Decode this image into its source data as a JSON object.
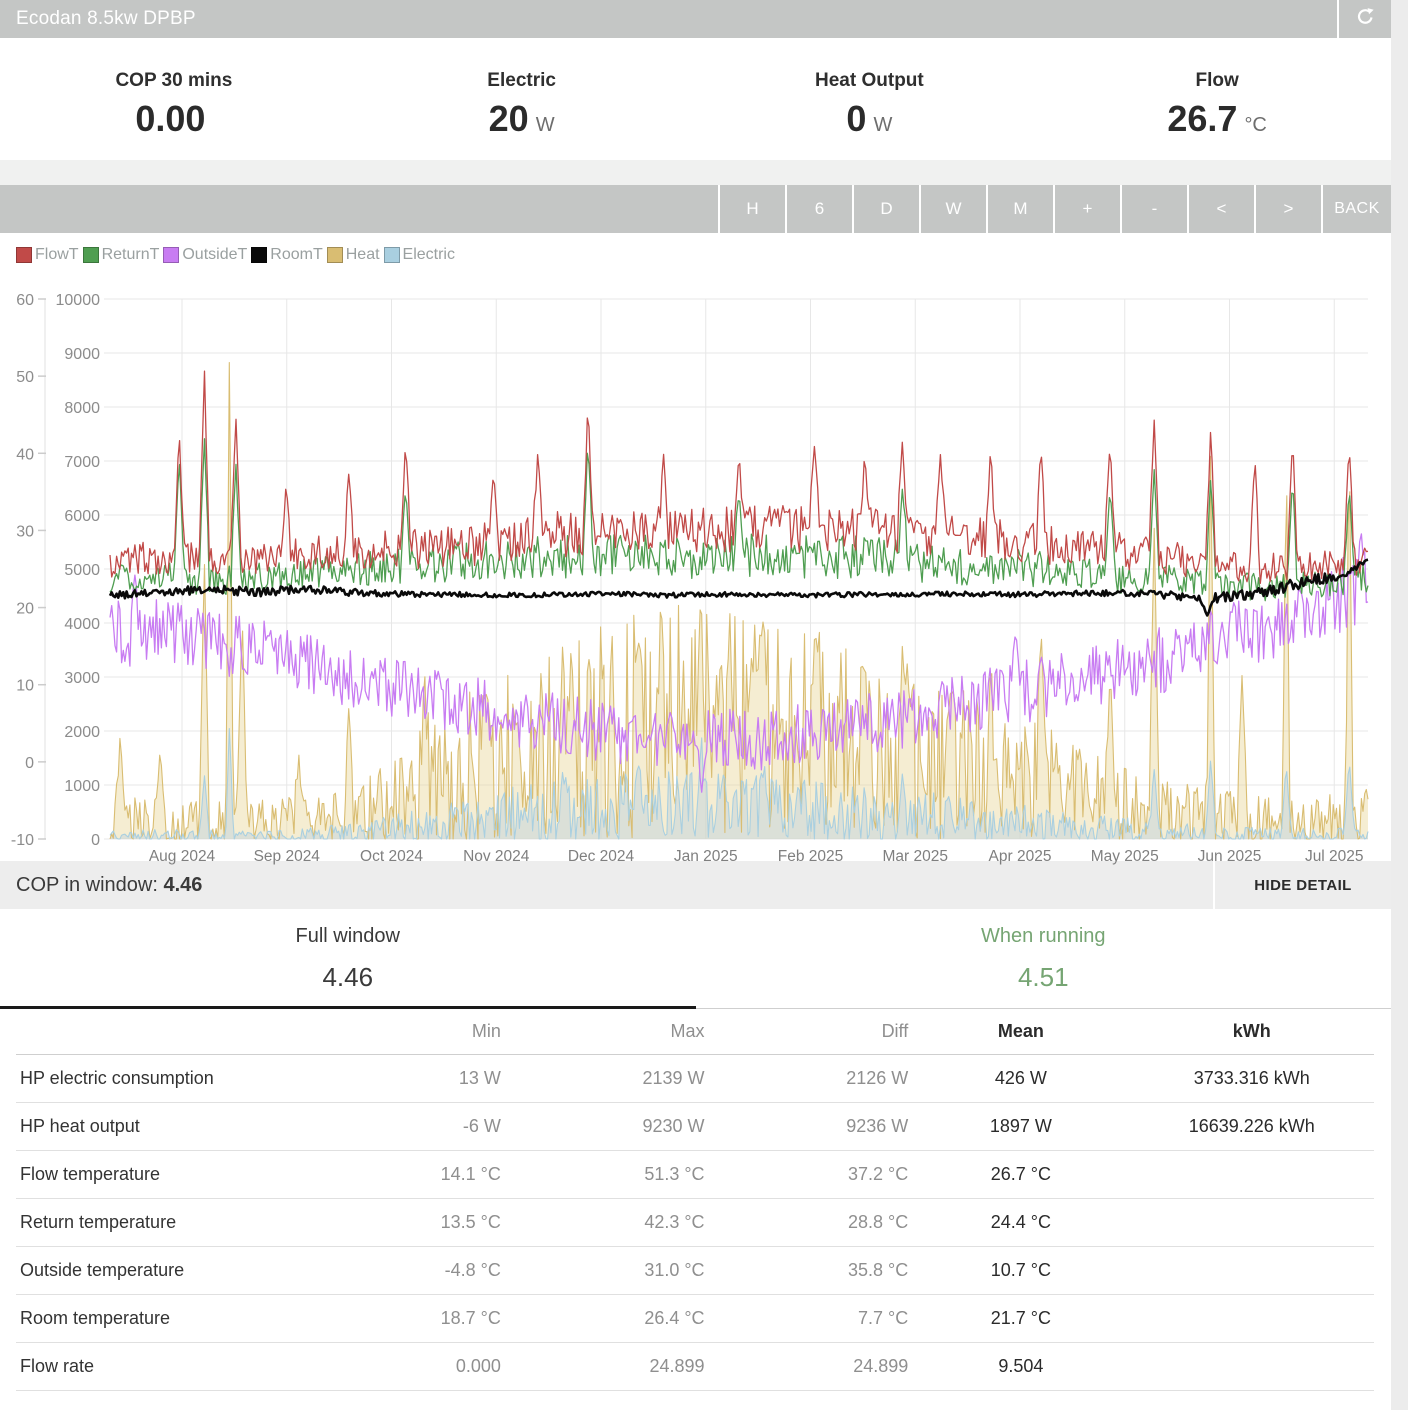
{
  "header": {
    "title": "Ecodan 8.5kw DPBP"
  },
  "stats": [
    {
      "label": "COP 30 mins",
      "value": "0.00",
      "unit": ""
    },
    {
      "label": "Electric",
      "value": "20",
      "unit": "W"
    },
    {
      "label": "Heat Output",
      "value": "0",
      "unit": "W"
    },
    {
      "label": "Flow",
      "value": "26.7",
      "unit": "°C"
    }
  ],
  "toolbar": {
    "buttons": [
      "H",
      "6",
      "D",
      "W",
      "M",
      "+",
      "-",
      "<",
      ">",
      "BACK"
    ]
  },
  "cop_bar": {
    "label": "COP in window: ",
    "value": "4.46",
    "detail_button": "HIDE DETAIL"
  },
  "tabs": [
    {
      "label": "Full window",
      "value": "4.46",
      "color": "#3a3a3a",
      "active": true
    },
    {
      "label": "When running",
      "value": "4.51",
      "color": "#76a573",
      "active": false
    }
  ],
  "table": {
    "headers": [
      "",
      "Min",
      "Max",
      "Diff",
      "Mean",
      "kWh"
    ],
    "rows": [
      [
        "HP electric consumption",
        "13 W",
        "2139 W",
        "2126 W",
        "426 W",
        "3733.316 kWh"
      ],
      [
        "HP heat output",
        "-6 W",
        "9230 W",
        "9236 W",
        "1897 W",
        "16639.226 kWh"
      ],
      [
        "Flow temperature",
        "14.1 °C",
        "51.3 °C",
        "37.2 °C",
        "26.7 °C",
        ""
      ],
      [
        "Return temperature",
        "13.5 °C",
        "42.3 °C",
        "28.8 °C",
        "24.4 °C",
        ""
      ],
      [
        "Outside temperature",
        "-4.8 °C",
        "31.0 °C",
        "35.8 °C",
        "10.7 °C",
        ""
      ],
      [
        "Room temperature",
        "18.7 °C",
        "26.4 °C",
        "7.7 °C",
        "21.7 °C",
        ""
      ],
      [
        "Flow rate",
        "0.000",
        "24.899",
        "24.899",
        "9.504",
        ""
      ]
    ]
  },
  "chart_data": {
    "type": "line",
    "title": "",
    "x_ticks": [
      "Aug 2024",
      "Sep 2024",
      "Oct 2024",
      "Nov 2024",
      "Dec 2024",
      "Jan 2025",
      "Feb 2025",
      "Mar 2025",
      "Apr 2025",
      "May 2025",
      "Jun 2025",
      "Jul 2025"
    ],
    "temp_axis": {
      "min": -10,
      "max": 60,
      "ticks": [
        60,
        50,
        40,
        30,
        20,
        10,
        0,
        -10
      ]
    },
    "watt_axis": {
      "min": 0,
      "max": 10000,
      "ticks": [
        10000,
        9000,
        8000,
        7000,
        6000,
        5000,
        4000,
        3000,
        2000,
        1000,
        0
      ]
    },
    "grid": true,
    "legend_position": "top-left",
    "series": [
      {
        "name": "FlowT",
        "axis": "temp",
        "color": "#c14a48",
        "width": 1.3,
        "layer": 5,
        "clamp_zero": false,
        "fill": null,
        "base": [
          26,
          26.5,
          26,
          26.5,
          27,
          27.5,
          27.5,
          28,
          29,
          29.5,
          30,
          30,
          30,
          30.5,
          30,
          30,
          29.5,
          29,
          28.5,
          28,
          27.5,
          26.5,
          25.5,
          25,
          25.5,
          26.5
        ],
        "noise": [
          2.2,
          2.2,
          2.2,
          2.2,
          2.2,
          2.4,
          2.6,
          2.8,
          3,
          3,
          3,
          3,
          3,
          3,
          3,
          3,
          3,
          2.8,
          2.8,
          2.6,
          2.4,
          2.2,
          2,
          2,
          2,
          2.2
        ],
        "spikes": [
          [
            0.055,
            43
          ],
          [
            0.075,
            51.3
          ],
          [
            0.1,
            45
          ],
          [
            0.14,
            36
          ],
          [
            0.19,
            38
          ],
          [
            0.235,
            42
          ],
          [
            0.305,
            38
          ],
          [
            0.34,
            40
          ],
          [
            0.38,
            46.8
          ],
          [
            0.44,
            40
          ],
          [
            0.5,
            40
          ],
          [
            0.56,
            41
          ],
          [
            0.6,
            40
          ],
          [
            0.63,
            42
          ],
          [
            0.66,
            40
          ],
          [
            0.7,
            41
          ],
          [
            0.74,
            41
          ],
          [
            0.795,
            42
          ],
          [
            0.83,
            44.5
          ],
          [
            0.875,
            43.5
          ],
          [
            0.91,
            40
          ],
          [
            0.94,
            42.5
          ],
          [
            0.985,
            41.5
          ]
        ]
      },
      {
        "name": "ReturnT",
        "axis": "temp",
        "color": "#4f9e51",
        "width": 1.3,
        "layer": 4,
        "clamp_zero": false,
        "fill": null,
        "base": [
          23.5,
          24,
          23.5,
          24,
          24.5,
          25,
          25.5,
          26,
          26.5,
          26.5,
          27,
          26.5,
          26.5,
          27,
          26.5,
          26.5,
          26,
          25.5,
          25,
          24.5,
          24,
          23.5,
          23,
          22.5,
          23,
          24
        ],
        "noise": [
          2,
          2,
          2,
          2,
          2,
          2.2,
          2.4,
          2.6,
          2.8,
          2.8,
          2.8,
          2.8,
          2.8,
          2.8,
          2.8,
          2.8,
          2.8,
          2.6,
          2.6,
          2.4,
          2.2,
          2,
          1.8,
          1.8,
          1.8,
          2
        ],
        "spikes": [
          [
            0.055,
            40
          ],
          [
            0.075,
            42.3
          ],
          [
            0.1,
            39
          ],
          [
            0.235,
            36
          ],
          [
            0.38,
            42
          ],
          [
            0.5,
            35
          ],
          [
            0.63,
            36
          ],
          [
            0.795,
            36
          ],
          [
            0.83,
            38
          ],
          [
            0.875,
            37
          ],
          [
            0.94,
            37
          ],
          [
            0.985,
            36
          ]
        ]
      },
      {
        "name": "OutsideT",
        "axis": "temp",
        "color": "#c87cf2",
        "width": 1.3,
        "layer": 3,
        "clamp_zero": false,
        "fill": null,
        "base": [
          17,
          16.5,
          15.5,
          14.5,
          12.5,
          10.5,
          9,
          7.5,
          6,
          5,
          3.5,
          2.5,
          3,
          2.8,
          4,
          5,
          6,
          7.5,
          9,
          10,
          11.5,
          13.5,
          15.5,
          17.5,
          20,
          23
        ],
        "noise": [
          4.5,
          4.5,
          4.5,
          4,
          4,
          4,
          4,
          4,
          4,
          4,
          4,
          4,
          4,
          4,
          4,
          4,
          4,
          4,
          4.2,
          4.2,
          4.5,
          4.5,
          4.5,
          4.5,
          5,
          5
        ],
        "spikes": [
          [
            0.02,
            24.5
          ],
          [
            0.47,
            -4.8
          ],
          [
            0.72,
            18
          ],
          [
            0.995,
            30
          ]
        ]
      },
      {
        "name": "RoomT",
        "axis": "temp",
        "color": "#0a0a0a",
        "width": 2.6,
        "layer": 6,
        "clamp_zero": false,
        "fill": null,
        "base": [
          21.6,
          21.9,
          22.4,
          22,
          22.4,
          21.9,
          21.7,
          21.7,
          21.6,
          21.7,
          21.8,
          21.6,
          21.7,
          21.7,
          21.6,
          21.7,
          21.7,
          21.8,
          21.7,
          21.8,
          21.9,
          21.6,
          21.2,
          22.2,
          23.6,
          25.4
        ],
        "noise": [
          0.5,
          0.55,
          0.6,
          0.6,
          0.55,
          0.45,
          0.35,
          0.3,
          0.3,
          0.3,
          0.3,
          0.3,
          0.3,
          0.3,
          0.3,
          0.3,
          0.3,
          0.3,
          0.35,
          0.35,
          0.4,
          0.5,
          0.7,
          0.8,
          0.8,
          0.6
        ],
        "spikes": [
          [
            0.872,
            18.9,
            0.006
          ],
          [
            1.0,
            26.2,
            0.01
          ]
        ]
      },
      {
        "name": "Heat",
        "axis": "watt",
        "color": "#d9bd72",
        "width": 1.1,
        "layer": 1,
        "clamp_zero": true,
        "fill": "rgba(233,214,156,0.45)",
        "base": [
          250,
          300,
          250,
          280,
          350,
          500,
          800,
          1300,
          1600,
          1900,
          2100,
          2200,
          2200,
          2100,
          1900,
          1700,
          1600,
          1300,
          1100,
          900,
          650,
          500,
          400,
          320,
          300,
          350
        ],
        "noise": [
          480,
          500,
          450,
          450,
          520,
          700,
          950,
          1400,
          1700,
          1900,
          2100,
          2200,
          2200,
          2100,
          2000,
          1800,
          1700,
          1500,
          1250,
          1000,
          800,
          650,
          560,
          500,
          500,
          600
        ],
        "spikes": [
          [
            0.008,
            1900
          ],
          [
            0.04,
            1700
          ],
          [
            0.075,
            5200
          ],
          [
            0.095,
            9230,
            0.003
          ],
          [
            0.105,
            4300
          ],
          [
            0.15,
            1600
          ],
          [
            0.19,
            2600
          ],
          [
            0.25,
            3200
          ],
          [
            0.3,
            2800
          ],
          [
            0.36,
            3700
          ],
          [
            0.42,
            3900
          ],
          [
            0.47,
            4300
          ],
          [
            0.52,
            4000
          ],
          [
            0.56,
            3700
          ],
          [
            0.6,
            3500
          ],
          [
            0.63,
            3600
          ],
          [
            0.7,
            3300
          ],
          [
            0.74,
            3900
          ],
          [
            0.795,
            3100
          ],
          [
            0.83,
            5800
          ],
          [
            0.875,
            7500,
            0.003
          ],
          [
            0.9,
            3100
          ],
          [
            0.935,
            7400,
            0.003
          ],
          [
            0.985,
            7600,
            0.003
          ]
        ]
      },
      {
        "name": "Electric",
        "axis": "watt",
        "color": "#a9cfe0",
        "width": 1.1,
        "layer": 2,
        "clamp_zero": true,
        "fill": "rgba(196,214,220,0.55)",
        "base": [
          60,
          70,
          60,
          65,
          80,
          130,
          220,
          350,
          450,
          520,
          580,
          620,
          620,
          580,
          520,
          460,
          420,
          360,
          300,
          250,
          190,
          130,
          100,
          80,
          70,
          80
        ],
        "noise": [
          120,
          120,
          110,
          110,
          130,
          200,
          300,
          450,
          520,
          580,
          620,
          650,
          650,
          620,
          580,
          520,
          480,
          420,
          360,
          300,
          240,
          180,
          150,
          130,
          120,
          140
        ],
        "spikes": [
          [
            0.075,
            1200
          ],
          [
            0.095,
            2139,
            0.003
          ],
          [
            0.36,
            1300
          ],
          [
            0.42,
            1400
          ],
          [
            0.47,
            2050,
            0.003
          ],
          [
            0.52,
            1400
          ],
          [
            0.63,
            1250
          ],
          [
            0.83,
            1300
          ],
          [
            0.875,
            1500
          ],
          [
            0.935,
            1400
          ],
          [
            0.985,
            1500
          ]
        ]
      }
    ]
  }
}
